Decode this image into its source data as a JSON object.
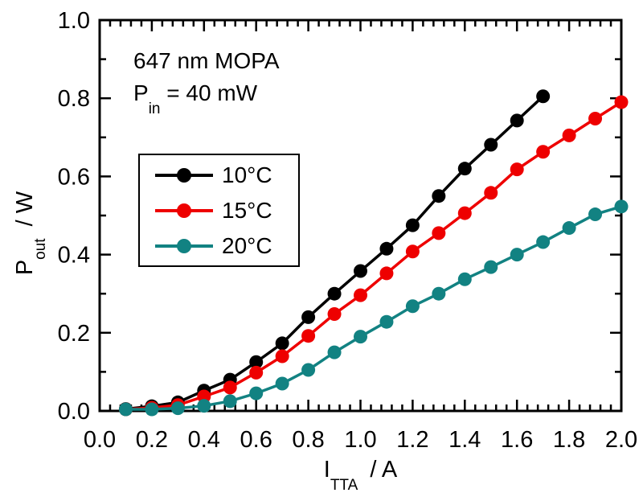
{
  "chart_data": {
    "type": "line",
    "title": "",
    "xlabel": "I_TTA / A",
    "ylabel": "P_out / W",
    "xlabel_parts": {
      "pre": "I",
      "sub": "TTA",
      "post": "/ A"
    },
    "ylabel_parts": {
      "pre": "P",
      "sub": "out",
      "post": "/ W"
    },
    "annotation": {
      "line1": "647 nm MOPA",
      "line2_pre": "P",
      "line2_sub": "in",
      "line2_post": "= 40 mW"
    },
    "xlim": [
      0.0,
      2.0
    ],
    "ylim": [
      0.0,
      1.0
    ],
    "x_major_step": 0.2,
    "x_minor_step": 0.04,
    "y_major_step": 0.2,
    "y_minor_step": 0.1,
    "x_tick_labels": [
      "0.0",
      "0.2",
      "0.4",
      "0.6",
      "0.8",
      "1.0",
      "1.2",
      "1.4",
      "1.6",
      "1.8",
      "2.0"
    ],
    "y_tick_labels": [
      "0.0",
      "0.2",
      "0.4",
      "0.6",
      "0.8",
      "1.0"
    ],
    "grid": false,
    "legend_position": "upper-left-inside",
    "series": [
      {
        "name": "10°C",
        "color": "#000000",
        "x": [
          0.1,
          0.2,
          0.3,
          0.4,
          0.5,
          0.6,
          0.7,
          0.8,
          0.9,
          1.0,
          1.1,
          1.2,
          1.3,
          1.4,
          1.5,
          1.6,
          1.7
        ],
        "y": [
          0.005,
          0.012,
          0.022,
          0.052,
          0.08,
          0.125,
          0.173,
          0.24,
          0.3,
          0.358,
          0.415,
          0.475,
          0.55,
          0.62,
          0.681,
          0.743,
          0.805
        ]
      },
      {
        "name": "15°C",
        "color": "#EE0000",
        "x": [
          0.1,
          0.2,
          0.3,
          0.4,
          0.5,
          0.6,
          0.7,
          0.8,
          0.9,
          1.0,
          1.1,
          1.2,
          1.3,
          1.4,
          1.5,
          1.6,
          1.7,
          1.8,
          1.9,
          2.0
        ],
        "y": [
          0.004,
          0.008,
          0.015,
          0.037,
          0.06,
          0.098,
          0.14,
          0.192,
          0.248,
          0.296,
          0.352,
          0.408,
          0.455,
          0.506,
          0.558,
          0.618,
          0.663,
          0.705,
          0.748,
          0.79
        ]
      },
      {
        "name": "20°C",
        "color": "#128282",
        "x": [
          0.1,
          0.2,
          0.3,
          0.4,
          0.5,
          0.6,
          0.7,
          0.8,
          0.9,
          1.0,
          1.1,
          1.2,
          1.3,
          1.4,
          1.5,
          1.6,
          1.7,
          1.8,
          1.9,
          2.0
        ],
        "y": [
          0.004,
          0.004,
          0.007,
          0.013,
          0.025,
          0.045,
          0.07,
          0.105,
          0.15,
          0.19,
          0.228,
          0.268,
          0.3,
          0.337,
          0.368,
          0.4,
          0.432,
          0.468,
          0.503,
          0.523
        ]
      }
    ]
  }
}
